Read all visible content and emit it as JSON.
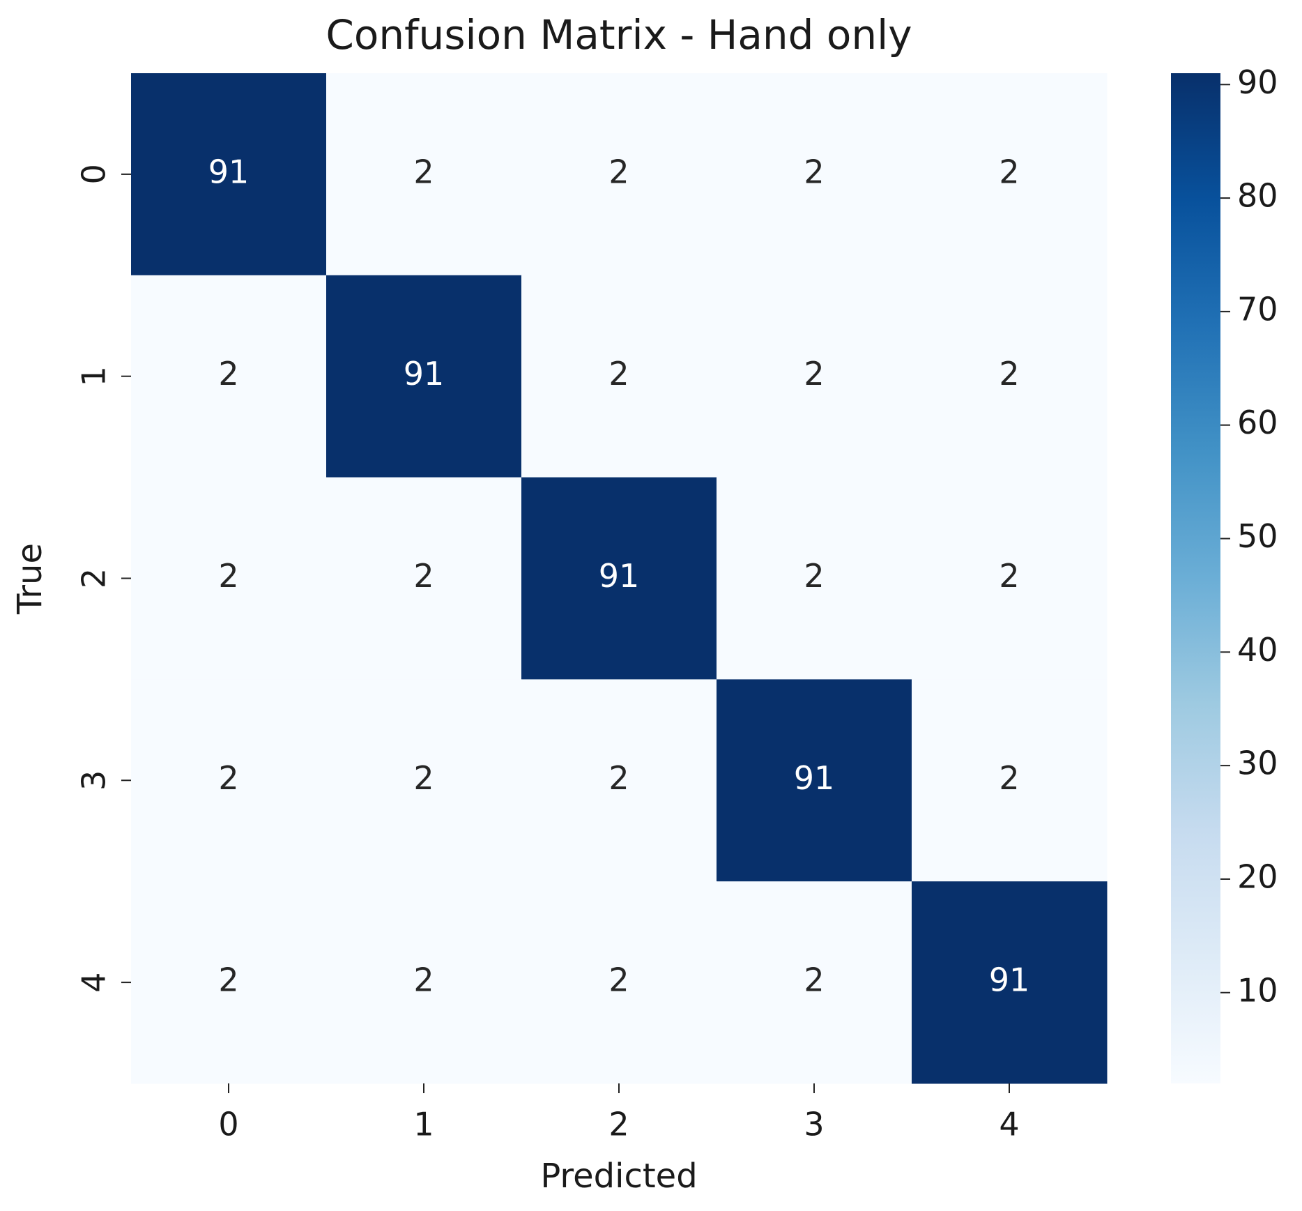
{
  "chart_data": {
    "type": "heatmap",
    "title": "Confusion Matrix - Hand only",
    "x_label": "Predicted",
    "y_label": "True",
    "x_categories": [
      "0",
      "1",
      "2",
      "3",
      "4"
    ],
    "y_categories": [
      "0",
      "1",
      "2",
      "3",
      "4"
    ],
    "values": [
      [
        91,
        2,
        2,
        2,
        2
      ],
      [
        2,
        91,
        2,
        2,
        2
      ],
      [
        2,
        2,
        91,
        2,
        2
      ],
      [
        2,
        2,
        2,
        91,
        2
      ],
      [
        2,
        2,
        2,
        2,
        91
      ]
    ],
    "zlim": [
      2,
      91
    ],
    "zticks": [
      10,
      20,
      30,
      40,
      50,
      60,
      70,
      80,
      90
    ],
    "colormap": [
      "#f7fbff",
      "#deebf7",
      "#c6dbef",
      "#9ecae1",
      "#6baed6",
      "#4292c6",
      "#2171b5",
      "#08519c",
      "#08306b"
    ]
  }
}
